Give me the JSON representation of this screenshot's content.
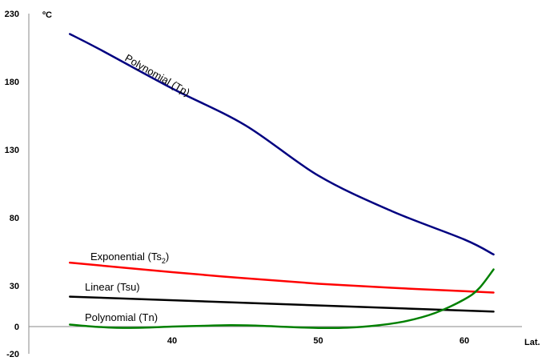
{
  "chart_data": {
    "type": "line",
    "ylabel": "ºC",
    "xlabel": "Lat.",
    "xlim": [
      31,
      65
    ],
    "ylim": [
      -20,
      230
    ],
    "xticks": [
      40,
      50,
      60
    ],
    "yticks": [
      -20,
      0,
      30,
      80,
      130,
      180,
      230
    ],
    "grid": false,
    "legend": "none",
    "series": [
      {
        "name": "Polynomial (Tp)",
        "color": "#000080",
        "points": [
          [
            33,
            215
          ],
          [
            35,
            204
          ],
          [
            40,
            175
          ],
          [
            45,
            148
          ],
          [
            50,
            111
          ],
          [
            55,
            85
          ],
          [
            60,
            64
          ],
          [
            62,
            53
          ]
        ]
      },
      {
        "name": "Exponential (Ts2)",
        "label_main": "Exponential (Ts",
        "label_sub": "2",
        "label_end": ")",
        "color": "#ff0000",
        "points": [
          [
            33,
            47
          ],
          [
            40,
            40
          ],
          [
            45,
            35.5
          ],
          [
            50,
            31.5
          ],
          [
            55,
            28.5
          ],
          [
            60,
            26
          ],
          [
            62,
            25
          ]
        ]
      },
      {
        "name": "Linear (Tsu)",
        "color": "#000000",
        "points": [
          [
            33,
            22
          ],
          [
            62,
            11
          ]
        ]
      },
      {
        "name": "Polynomial (Tn)",
        "color": "#008000",
        "points": [
          [
            33,
            1.5
          ],
          [
            34,
            0.5
          ],
          [
            36,
            -0.8
          ],
          [
            38,
            -0.8
          ],
          [
            40,
            0
          ],
          [
            42,
            0.5
          ],
          [
            44,
            1
          ],
          [
            46,
            0.6
          ],
          [
            48,
            -0.3
          ],
          [
            50,
            -1
          ],
          [
            52,
            -0.8
          ],
          [
            54,
            0.8
          ],
          [
            56,
            4
          ],
          [
            58,
            10
          ],
          [
            60,
            20
          ],
          [
            61,
            28
          ],
          [
            62,
            42
          ]
        ]
      }
    ]
  }
}
